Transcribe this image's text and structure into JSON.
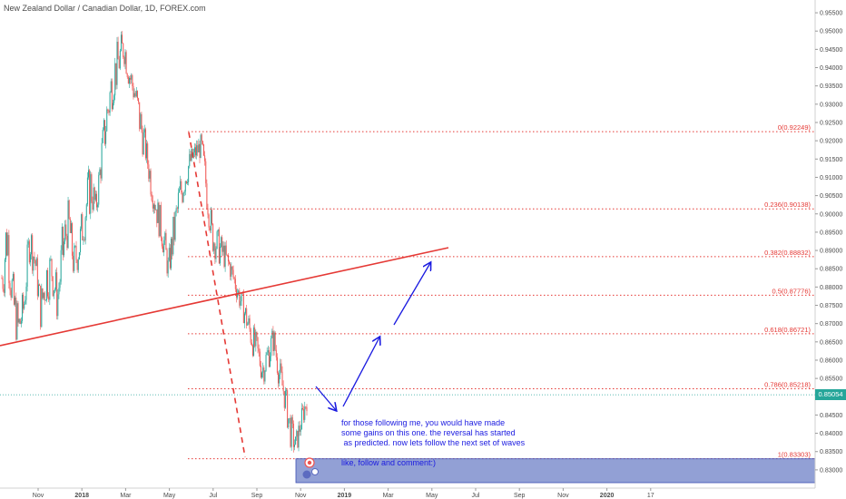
{
  "header": {
    "title": "New Zealand Dollar / Canadian Dollar, 1D, FOREX.com"
  },
  "annotation": {
    "text": "for those following me, you would have made\nsome gains on this one. the reversal has started\n as predicted. now lets follow the next set of waves\n\nlike, follow and comment:)"
  },
  "colors": {
    "fib": "#e53935",
    "trendline": "#e53935",
    "arrows": "#1a1ae0",
    "bull": "#26a69a",
    "bear": "#ef5350",
    "target_box": "#7f8fce",
    "price_line": "#26a69a"
  },
  "chart_data": {
    "type": "candlestick",
    "title": "New Zealand Dollar / Canadian Dollar, 1D, FOREX.com",
    "ylim": [
      0.8265,
      0.9575
    ],
    "y_ticks": [
      "0.95500",
      "0.95000",
      "0.94500",
      "0.94000",
      "0.93500",
      "0.93000",
      "0.92500",
      "0.92000",
      "0.91500",
      "0.91000",
      "0.90500",
      "0.90000",
      "0.89500",
      "0.89000",
      "0.88500",
      "0.88000",
      "0.87500",
      "0.87000",
      "0.86500",
      "0.86000",
      "0.85500",
      "0.85000",
      "0.84500",
      "0.84000",
      "0.83500",
      "0.83000"
    ],
    "x_ticks": [
      "Nov",
      "2018",
      "Mar",
      "May",
      "Jul",
      "Sep",
      "Nov",
      "2019",
      "Mar",
      "May",
      "Jul",
      "Sep",
      "Nov",
      "2020",
      "17"
    ],
    "current_price": "0.85054",
    "fib_levels": [
      {
        "label": "0(0.92249)",
        "price": 0.92249
      },
      {
        "label": "0.236(0.90138)",
        "price": 0.90138
      },
      {
        "label": "0.382(0.88832)",
        "price": 0.88832
      },
      {
        "label": "0.5(0.87776)",
        "price": 0.87776
      },
      {
        "label": "0.618(0.86721)",
        "price": 0.86721
      },
      {
        "label": "0.786(0.85218)",
        "price": 0.85218
      },
      {
        "label": "1(0.83303)",
        "price": 0.83303
      }
    ],
    "price_path": [
      [
        0.872,
        0.893
      ],
      [
        0.885,
        0.905
      ],
      [
        0.868,
        0.884
      ],
      [
        0.862,
        0.875
      ],
      [
        0.87,
        0.88
      ],
      [
        0.887,
        0.9
      ],
      [
        0.882,
        0.892
      ],
      [
        0.868,
        0.88
      ],
      [
        0.875,
        0.89
      ],
      [
        0.878,
        0.892
      ],
      [
        0.87,
        0.883
      ],
      [
        0.88,
        0.899
      ],
      [
        0.893,
        0.904
      ],
      [
        0.88,
        0.892
      ],
      [
        0.886,
        0.897
      ],
      [
        0.893,
        0.909
      ],
      [
        0.9,
        0.915
      ],
      [
        0.898,
        0.905
      ],
      [
        0.91,
        0.922
      ],
      [
        0.92,
        0.935
      ],
      [
        0.93,
        0.944
      ],
      [
        0.935,
        0.948
      ],
      [
        0.941,
        0.951
      ],
      [
        0.933,
        0.943
      ],
      [
        0.928,
        0.938
      ],
      [
        0.918,
        0.931
      ],
      [
        0.913,
        0.921
      ],
      [
        0.903,
        0.913
      ],
      [
        0.896,
        0.905
      ],
      [
        0.889,
        0.9
      ],
      [
        0.881,
        0.889
      ],
      [
        0.888,
        0.901
      ],
      [
        0.897,
        0.911
      ],
      [
        0.905,
        0.915
      ],
      [
        0.911,
        0.918
      ],
      [
        0.914,
        0.92
      ],
      [
        0.915,
        0.922
      ],
      [
        0.9,
        0.912
      ],
      [
        0.889,
        0.898
      ],
      [
        0.886,
        0.896
      ],
      [
        0.885,
        0.893
      ],
      [
        0.883,
        0.889
      ],
      [
        0.878,
        0.885
      ],
      [
        0.873,
        0.88
      ],
      [
        0.868,
        0.876
      ],
      [
        0.862,
        0.871
      ],
      [
        0.858,
        0.867
      ],
      [
        0.853,
        0.862
      ],
      [
        0.857,
        0.866
      ],
      [
        0.862,
        0.87
      ],
      [
        0.852,
        0.861
      ],
      [
        0.846,
        0.855
      ],
      [
        0.836,
        0.846
      ],
      [
        0.833,
        0.84
      ],
      [
        0.84,
        0.847
      ],
      [
        0.846,
        0.852
      ]
    ]
  }
}
